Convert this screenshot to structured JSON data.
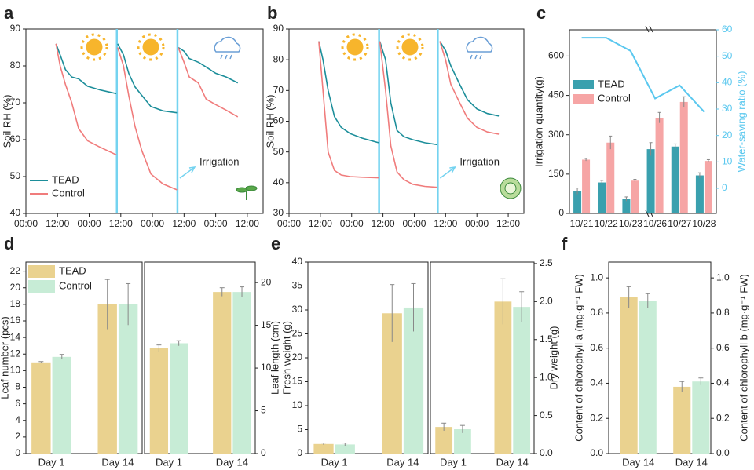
{
  "chart_data": [
    {
      "type": "line",
      "label": "a",
      "ylabel": "Soil RH (%)",
      "annotation": "Irrigation",
      "xlim": [
        0,
        90
      ],
      "ylim": [
        40,
        90
      ],
      "yticks": [
        40,
        50,
        60,
        70,
        80,
        90
      ],
      "xticks": [
        {
          "value": 0,
          "label": "00:00"
        },
        {
          "value": 12,
          "label": "12:00"
        },
        {
          "value": 24,
          "label": "00:00"
        },
        {
          "value": 36,
          "label": "12:00"
        },
        {
          "value": 48,
          "label": "00:00"
        },
        {
          "value": 60,
          "label": "12:00"
        },
        {
          "value": 72,
          "label": "00:00"
        },
        {
          "value": 84,
          "label": "12:00"
        }
      ],
      "irrigation_times": [
        34.5,
        57.5
      ],
      "irrigation_color": "#74d3f0",
      "x": [
        11.4,
        13,
        15,
        17.4,
        20,
        23.4,
        28,
        34.3,
        null,
        34.8,
        37,
        39,
        41.4,
        44,
        47.4,
        52,
        57.3,
        null,
        57.8,
        60,
        62,
        65.4,
        68.4,
        72,
        76,
        80.4
      ],
      "series": [
        {
          "name": "TEAD",
          "color": "#1c8e9a",
          "values": [
            86,
            83,
            79,
            77,
            76.5,
            74.5,
            73.5,
            72.5,
            null,
            86,
            83,
            78,
            74.3,
            72,
            69,
            67.8,
            67.3,
            null,
            85,
            84,
            82,
            81,
            79.7,
            78,
            77,
            75.4
          ]
        },
        {
          "name": "Control",
          "color": "#f07c7c",
          "values": [
            86,
            80,
            75,
            70,
            63,
            59.7,
            58,
            55.9,
            null,
            85,
            80,
            72,
            63.6,
            57,
            50.7,
            48,
            46.4,
            null,
            85,
            81,
            77,
            75.4,
            71,
            69.5,
            68,
            66.2
          ]
        }
      ]
    },
    {
      "type": "line",
      "label": "b",
      "ylabel": "Soil RH (%)",
      "annotation": "Irrigation",
      "xlim": [
        0,
        90
      ],
      "ylim": [
        30,
        90
      ],
      "yticks": [
        30,
        40,
        50,
        60,
        70,
        80,
        90
      ],
      "xticks": [
        {
          "value": 0,
          "label": "00:00"
        },
        {
          "value": 12,
          "label": "12:00"
        },
        {
          "value": 24,
          "label": "00:00"
        },
        {
          "value": 36,
          "label": "12:00"
        },
        {
          "value": 48,
          "label": "00:00"
        },
        {
          "value": 60,
          "label": "12:00"
        },
        {
          "value": 72,
          "label": "00:00"
        },
        {
          "value": 84,
          "label": "12:00"
        }
      ],
      "irrigation_times": [
        34.5,
        57
      ],
      "irrigation_color": "#74d3f0",
      "x": [
        11.4,
        13,
        15,
        17.4,
        20,
        23.4,
        28,
        34.3,
        null,
        34.8,
        37,
        39,
        41.4,
        44,
        47.4,
        52,
        56.8,
        null,
        57.8,
        60,
        62,
        65.4,
        68.4,
        72,
        76,
        80.4
      ],
      "series": [
        {
          "color": "#1c8e9a",
          "values": [
            86,
            80,
            70,
            61.5,
            58,
            56,
            54.5,
            53,
            null,
            86,
            80,
            66,
            57,
            55,
            54,
            53,
            52.4,
            null,
            86,
            83,
            78,
            72,
            67,
            64,
            62.5,
            61.7
          ]
        },
        {
          "color": "#f07c7c",
          "values": [
            86,
            70,
            50,
            44,
            42.5,
            42,
            41.8,
            41.6,
            null,
            86,
            70,
            52,
            43.5,
            41,
            39.5,
            38.8,
            38.5,
            null,
            86,
            80,
            72,
            66,
            61,
            58,
            56.5,
            55.8
          ]
        }
      ]
    },
    {
      "type": "bar-line",
      "label": "c",
      "ylabel": "Irrigation quantity(g)",
      "y2label": "Water-saving ratio (%)",
      "categories": [
        "10/21",
        "10/22",
        "10/23",
        "10/26",
        "10/27",
        "10/28"
      ],
      "ylim": [
        0,
        700
      ],
      "yticks": [
        0,
        150,
        300,
        450,
        600
      ],
      "y2lim": [
        -9.5,
        60
      ],
      "y2ticks": [
        0,
        10,
        20,
        30,
        40,
        50,
        60
      ],
      "y2color": "#5bc8ef",
      "series": [
        {
          "name": "TEAD",
          "color": "#3aa0ae",
          "values": [
            85,
            118,
            55,
            245,
            255,
            145
          ],
          "errors": [
            12,
            8,
            8,
            25,
            10,
            10
          ]
        },
        {
          "name": "Control",
          "color": "#f6a5a5",
          "values": [
            205,
            270,
            125,
            365,
            425,
            200
          ],
          "errors": [
            5,
            25,
            5,
            20,
            20,
            5
          ]
        },
        {
          "color": "#5bc8ef",
          "axis": "y2",
          "values": [
            57,
            57,
            52,
            34,
            39,
            29
          ]
        }
      ]
    },
    {
      "type": "bar-split",
      "label": "d",
      "categories": [
        "Day 1",
        "Day 14"
      ],
      "left": {
        "ylabel": "Leaf number (pcs)",
        "ylim": [
          0,
          23.1
        ],
        "yticks": [
          0,
          2,
          4,
          6,
          8,
          10,
          12,
          14,
          16,
          18,
          20,
          22
        ],
        "series": [
          {
            "name": "TEAD",
            "color": "#ead28f",
            "values": [
              11,
              18
            ],
            "errors": [
              0.1,
              3
            ]
          },
          {
            "name": "Control",
            "color": "#c7ecd6",
            "values": [
              11.66,
              18
            ],
            "errors": [
              0.3,
              2.5
            ]
          }
        ]
      },
      "right": {
        "ylabel": "Leaf length (cm)",
        "ylim": [
          0,
          22.4
        ],
        "yticks": [
          0,
          5,
          10,
          15,
          20
        ],
        "series": [
          {
            "color": "#ead28f",
            "values": [
              12.3,
              18.9
            ],
            "errors": [
              0.4,
              0.5
            ]
          },
          {
            "color": "#c7ecd6",
            "values": [
              12.9,
              18.9
            ],
            "errors": [
              0.3,
              0.6
            ]
          }
        ]
      }
    },
    {
      "type": "bar-split",
      "label": "e",
      "categories": [
        "Day 1",
        "Day 14"
      ],
      "left": {
        "ylabel": "Fresh weight (g)",
        "ylim": [
          0,
          40
        ],
        "yticks": [
          0,
          5,
          10,
          15,
          20,
          25,
          30,
          35,
          40
        ],
        "series": [
          {
            "color": "#ead28f",
            "values": [
              2,
              29.3
            ],
            "errors": [
              0.2,
              6
            ]
          },
          {
            "color": "#c7ecd6",
            "values": [
              1.9,
              30.5
            ],
            "errors": [
              0.3,
              5
            ]
          }
        ]
      },
      "right": {
        "ylabel": "Dry weight (g)",
        "ylim": [
          0,
          2.52
        ],
        "yticks": [
          {
            "value": 0,
            "label": "0.0"
          },
          0.5,
          {
            "value": 1,
            "label": "1.0"
          },
          1.5,
          {
            "value": 2,
            "label": "2.0"
          },
          2.5
        ],
        "series": [
          {
            "color": "#ead28f",
            "values": [
              0.35,
              2.0
            ],
            "errors": [
              0.05,
              0.3
            ]
          },
          {
            "color": "#c7ecd6",
            "values": [
              0.32,
              1.93
            ],
            "errors": [
              0.05,
              0.2
            ]
          }
        ]
      }
    },
    {
      "type": "bar-dual",
      "label": "f",
      "categories": [
        "Day 14",
        "Day 14"
      ],
      "group_axis": [
        "y",
        "y2"
      ],
      "ylabel": "Content of chlorophyll a (mg·g⁻¹ FW)",
      "y2label": "Content of chlorophyll b (mg·g⁻¹ FW)",
      "ylim": [
        0,
        1.09
      ],
      "yticks": [
        {
          "value": 0,
          "label": "0.0"
        },
        0.2,
        0.4,
        0.6,
        0.8,
        {
          "value": 1,
          "label": "1.0"
        }
      ],
      "y2lim": [
        0,
        1.09
      ],
      "y2ticks": [
        {
          "value": 0,
          "label": "0.0"
        },
        0.2,
        0.4,
        0.6,
        0.8,
        {
          "value": 1,
          "label": "1.0"
        }
      ],
      "series": [
        {
          "color": "#ead28f",
          "values": [
            0.89,
            0.38
          ],
          "errors": [
            0.06,
            0.03
          ]
        },
        {
          "color": "#c7ecd6",
          "values": [
            0.87,
            0.41
          ],
          "errors": [
            0.04,
            0.02
          ]
        }
      ]
    }
  ]
}
